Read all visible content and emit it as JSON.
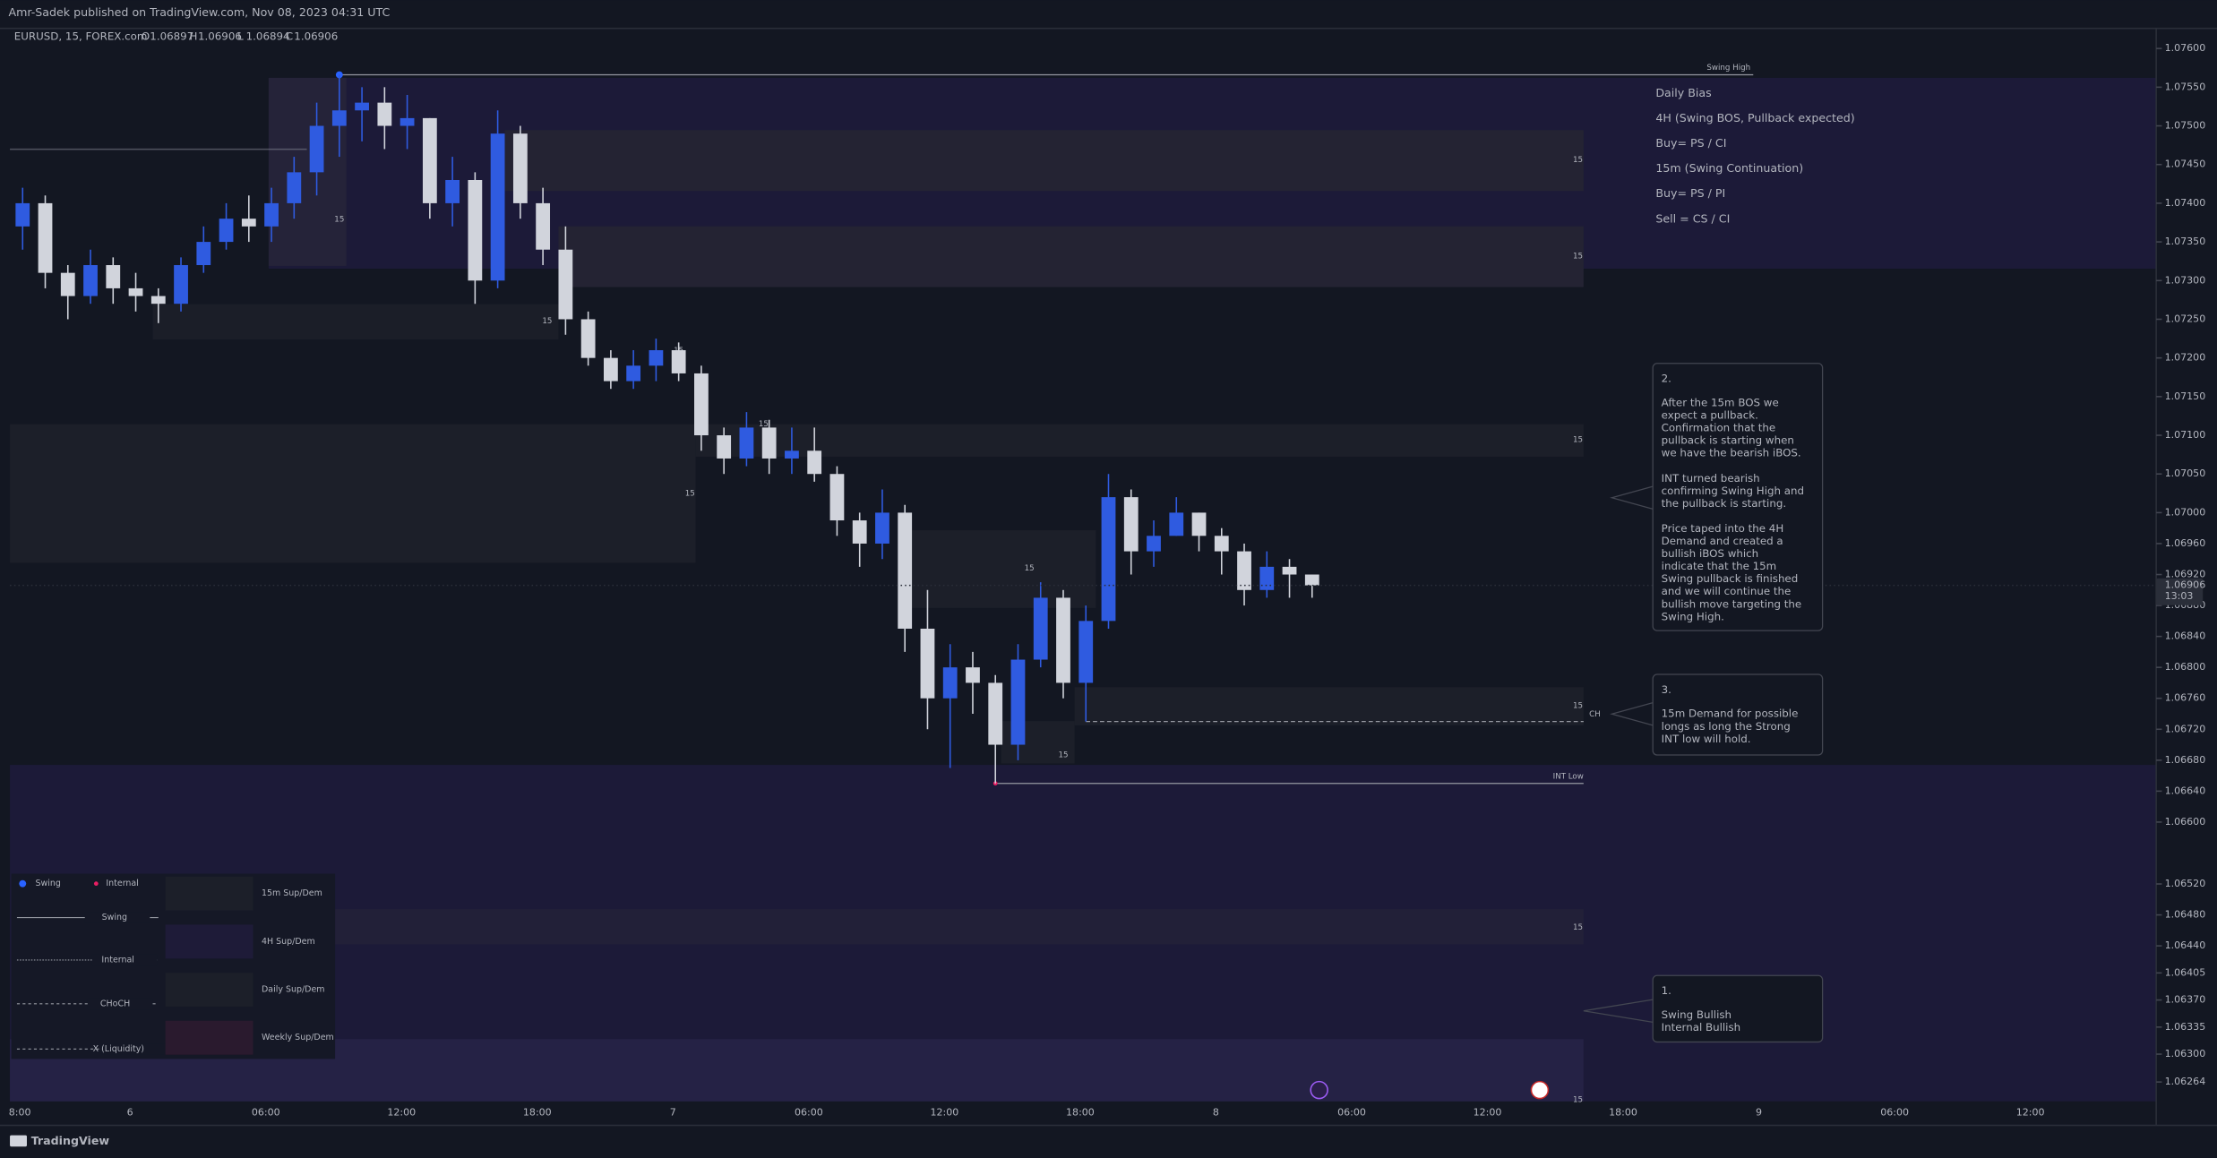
{
  "header": {
    "published": "Amr-Sadek published on TradingView.com, Nov 08, 2023 04:31 UTC",
    "footer": "TradingView"
  },
  "chart_data": {
    "type": "candlestick",
    "title": "EURUSD, 15, FOREX.com",
    "ohlc_header": [
      {
        "label": "O",
        "value": 1.06897
      },
      {
        "label": "H",
        "value": 1.06906
      },
      {
        "label": "L",
        "value": 1.06894
      },
      {
        "label": "C",
        "value": 1.06906
      }
    ],
    "up_color": "#2f5be0",
    "down_color": "#d1d4dc",
    "open": [
      1.0737,
      1.074,
      1.0731,
      1.0728,
      1.0732,
      1.0729,
      1.0728,
      1.0727,
      1.0732,
      1.0735,
      1.0738,
      1.0737,
      1.074,
      1.0744,
      1.075,
      1.0752,
      1.0753,
      1.075,
      1.0751,
      1.074,
      1.0743,
      1.073,
      1.0749,
      1.074,
      1.0734,
      1.0725,
      1.072,
      1.0717,
      1.0719,
      1.0721,
      1.0718,
      1.071,
      1.0707,
      1.0711,
      1.0707,
      1.0708,
      1.0705,
      1.0699,
      1.0696,
      1.07,
      1.0685,
      1.0676,
      1.068,
      1.0678,
      1.067,
      1.0681,
      1.0689,
      1.0678,
      1.0686,
      1.0702,
      1.0695,
      1.0697,
      1.07,
      1.0697,
      1.0695,
      1.069,
      1.0693,
      1.0692
    ],
    "high": [
      1.0742,
      1.0741,
      1.0732,
      1.0734,
      1.0733,
      1.0731,
      1.0729,
      1.0733,
      1.0737,
      1.074,
      1.0741,
      1.0742,
      1.0746,
      1.0753,
      1.07566,
      1.0755,
      1.0755,
      1.0754,
      1.0751,
      1.0746,
      1.0744,
      1.0752,
      1.075,
      1.0742,
      1.0737,
      1.0726,
      1.0721,
      1.0721,
      1.07225,
      1.0722,
      1.0719,
      1.0711,
      1.0713,
      1.0712,
      1.0711,
      1.0711,
      1.0706,
      1.07,
      1.0703,
      1.0701,
      1.069,
      1.0683,
      1.0682,
      1.0679,
      1.0683,
      1.0691,
      1.069,
      1.0688,
      1.0705,
      1.0703,
      1.0699,
      1.0702,
      1.07,
      1.0698,
      1.0696,
      1.0695,
      1.0694,
      1.0692
    ],
    "low": [
      1.0734,
      1.0729,
      1.0725,
      1.0727,
      1.0727,
      1.0726,
      1.07245,
      1.0726,
      1.0731,
      1.0734,
      1.0735,
      1.0735,
      1.0738,
      1.0741,
      1.0746,
      1.0748,
      1.0747,
      1.0747,
      1.0738,
      1.0737,
      1.0727,
      1.0729,
      1.0738,
      1.0732,
      1.0723,
      1.0719,
      1.0716,
      1.0716,
      1.0717,
      1.0717,
      1.0708,
      1.0705,
      1.0706,
      1.0705,
      1.0705,
      1.0704,
      1.0697,
      1.0693,
      1.0694,
      1.0682,
      1.0672,
      1.0667,
      1.0674,
      1.0665,
      1.0668,
      1.068,
      1.0676,
      1.0673,
      1.0685,
      1.0692,
      1.0693,
      1.0697,
      1.0695,
      1.0692,
      1.0688,
      1.0689,
      1.0689,
      1.0689
    ],
    "close": [
      1.074,
      1.0731,
      1.0728,
      1.0732,
      1.0729,
      1.0728,
      1.0727,
      1.0732,
      1.0735,
      1.0738,
      1.0737,
      1.074,
      1.0744,
      1.075,
      1.0752,
      1.0753,
      1.075,
      1.0751,
      1.074,
      1.0743,
      1.073,
      1.0749,
      1.074,
      1.0734,
      1.0725,
      1.072,
      1.0717,
      1.0719,
      1.0721,
      1.0718,
      1.071,
      1.0707,
      1.0711,
      1.0707,
      1.0708,
      1.0705,
      1.0699,
      1.0696,
      1.07,
      1.0685,
      1.0676,
      1.068,
      1.0678,
      1.067,
      1.0681,
      1.0689,
      1.0678,
      1.0686,
      1.0702,
      1.0695,
      1.0697,
      1.07,
      1.0697,
      1.0695,
      1.069,
      1.0693,
      1.0692,
      1.06906
    ],
    "ylim": [
      1.06239,
      1.07626
    ],
    "yticks": [
      {
        "value": 1.076,
        "label": "1.07600"
      },
      {
        "value": 1.0755,
        "label": "1.07550"
      },
      {
        "value": 1.075,
        "label": "1.07500"
      },
      {
        "value": 1.0745,
        "label": "1.07450"
      },
      {
        "value": 1.074,
        "label": "1.07400"
      },
      {
        "value": 1.0735,
        "label": "1.07350"
      },
      {
        "value": 1.073,
        "label": "1.07300"
      },
      {
        "value": 1.0725,
        "label": "1.07250"
      },
      {
        "value": 1.072,
        "label": "1.07200"
      },
      {
        "value": 1.0715,
        "label": "1.07150"
      },
      {
        "value": 1.071,
        "label": "1.07100"
      },
      {
        "value": 1.0705,
        "label": "1.07050"
      },
      {
        "value": 1.07,
        "label": "1.07000"
      },
      {
        "value": 1.0696,
        "label": "1.06960"
      },
      {
        "value": 1.0692,
        "label": "1.06920"
      },
      {
        "value": 1.0688,
        "label": "1.06880"
      },
      {
        "value": 1.0684,
        "label": "1.06840"
      },
      {
        "value": 1.068,
        "label": "1.06800"
      },
      {
        "value": 1.0676,
        "label": "1.06760"
      },
      {
        "value": 1.0672,
        "label": "1.06720"
      },
      {
        "value": 1.0668,
        "label": "1.06680"
      },
      {
        "value": 1.0664,
        "label": "1.06640"
      },
      {
        "value": 1.066,
        "label": "1.06600"
      },
      {
        "value": 1.0652,
        "label": "1.06520"
      },
      {
        "value": 1.0648,
        "label": "1.06480"
      },
      {
        "value": 1.0644,
        "label": "1.06440"
      },
      {
        "value": 1.06405,
        "label": "1.06405"
      },
      {
        "value": 1.0637,
        "label": "1.06370"
      },
      {
        "value": 1.06335,
        "label": "1.06335"
      },
      {
        "value": 1.063,
        "label": "1.06300"
      },
      {
        "value": 1.06264,
        "label": "1.06264"
      }
    ],
    "grid": false,
    "x_tick_labels": [
      "8:00",
      "6",
      "06:00",
      "12:00",
      "18:00",
      "7",
      "06:00",
      "12:00",
      "18:00",
      "8",
      "06:00",
      "12:00",
      "18:00",
      "9",
      "06:00",
      "12:00"
    ],
    "last_price": 1.06906,
    "countdown": "13:03",
    "level_labels": {
      "swing_high": "Swing High",
      "choch": "CH",
      "int_low": "INT Low"
    },
    "zone_labels": [
      "15",
      "15",
      "15",
      "15",
      "15",
      "15",
      "15",
      "15",
      "15",
      "15",
      "15",
      "15",
      "15"
    ],
    "daily_bias": [
      "Daily Bias",
      "4H (Swing BOS, Pullback expected)",
      "Buy= PS / CI",
      "15m (Swing Continuation)",
      "Buy= PS / PI",
      "Sell = CS / CI"
    ],
    "annotations": [
      {
        "number": "2.",
        "paragraphs": [
          [
            "After the 15m BOS we",
            "expect a pullback.",
            "Confirmation that the",
            "pullback is starting when",
            "we have the bearish iBOS."
          ],
          [
            "INT turned bearish",
            "confirming Swing High and",
            "the pullback is starting."
          ],
          [
            "Price taped into the 4H",
            "Demand and created a",
            "bullish iBOS which",
            "indicate that the 15m",
            "Swing pullback is finished",
            "and we will continue the",
            "bullish move targeting the",
            "Swing High."
          ]
        ]
      },
      {
        "number": "3.",
        "paragraphs": [
          [
            "15m Demand for possible",
            "longs as long the Strong",
            "INT low will hold."
          ]
        ]
      },
      {
        "number": "1.",
        "paragraphs": [
          [
            "Swing Bullish",
            "Internal Bullish"
          ]
        ]
      }
    ],
    "legend": {
      "markers": [
        "Swing",
        "Internal"
      ],
      "lines": [
        "Swing",
        "Internal",
        "CHoCH",
        "X (Liquidity)"
      ],
      "zones": [
        "15m Sup/Dem",
        "4H Sup/Dem",
        "Daily Sup/Dem",
        "Weekly Sup/Dem"
      ]
    }
  }
}
